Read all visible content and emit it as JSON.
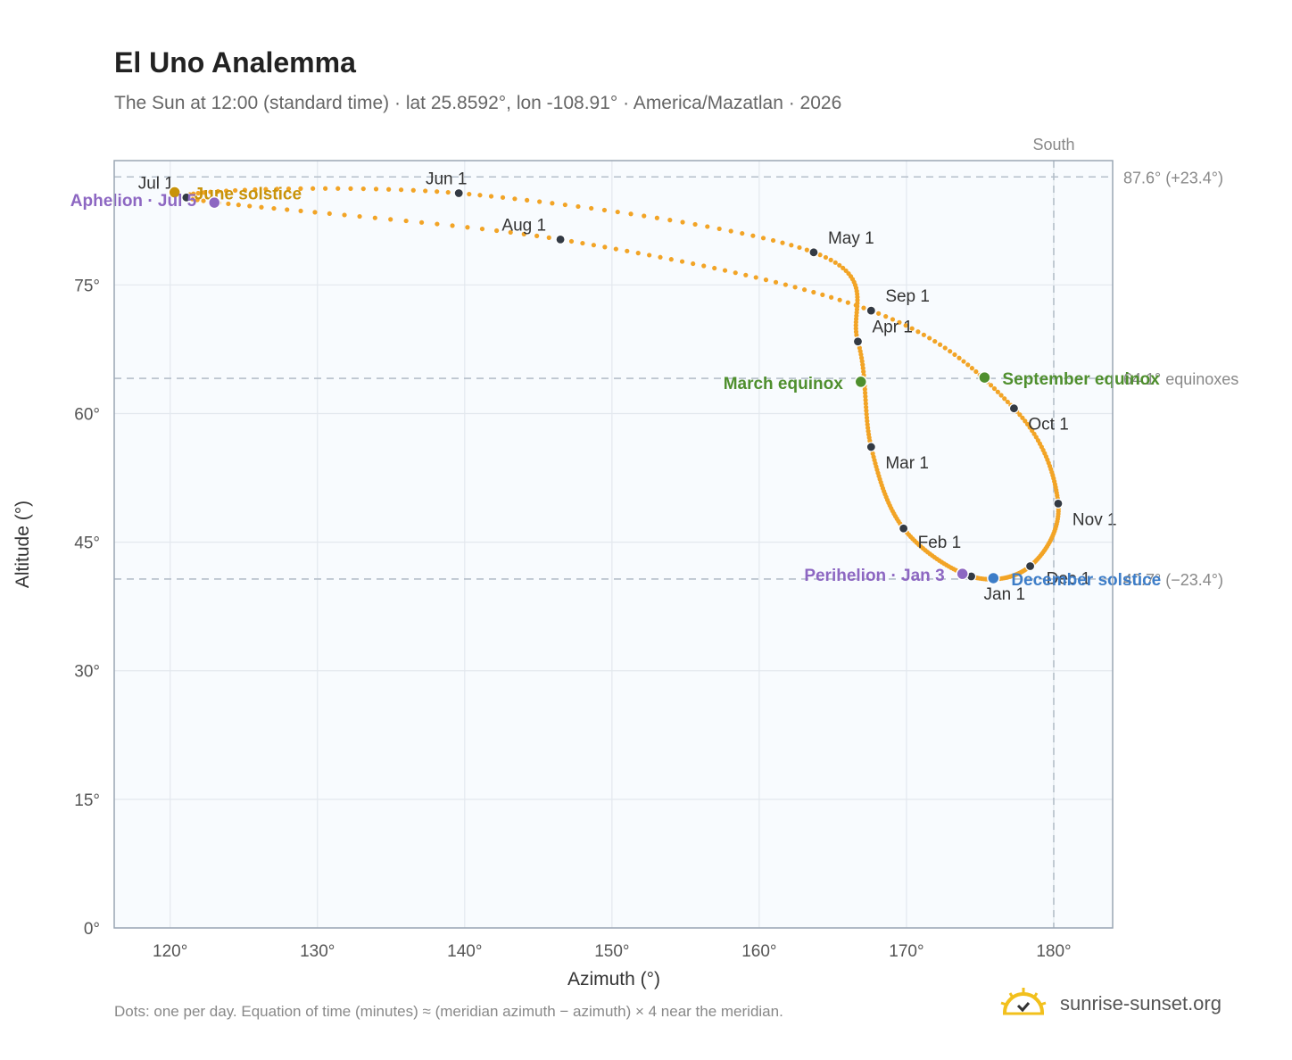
{
  "header": {
    "title": "El Uno Analemma",
    "subtitle": "The Sun at 12:00 (standard time) · lat 25.8592°, lon -108.91° · America/Mazatlan · 2026"
  },
  "footer": {
    "note": "Dots: one per day. Equation of time (minutes) ≈ (meridian azimuth − azimuth) × 4 near the meridian.",
    "brand": "sunrise-sunset.org"
  },
  "colors": {
    "curve": "#f2a426",
    "month_dot": "#333a44",
    "solstice_june": "#c8930a",
    "solstice_december": "#3d7dc8",
    "equinox": "#4f8f2e",
    "apsis": "#8d67c2",
    "guide": "#b5bfca",
    "plot_bg": "#f8fbfe",
    "grid": "#e3e8ee"
  },
  "chart_data": {
    "type": "scatter",
    "xlabel": "Azimuth (°)",
    "ylabel": "Altitude (°)",
    "xlim": [
      116.2,
      184
    ],
    "ylim": [
      0,
      89.5
    ],
    "x_ticks": [
      120,
      130,
      140,
      150,
      160,
      170,
      180
    ],
    "x_tick_labels": [
      "120°",
      "130°",
      "140°",
      "150°",
      "160°",
      "170°",
      "180°"
    ],
    "y_ticks": [
      0,
      15,
      30,
      45,
      60,
      75
    ],
    "y_tick_labels": [
      "0°",
      "15°",
      "30°",
      "45°",
      "60°",
      "75°"
    ],
    "grid": true,
    "reference_lines": [
      {
        "axis": "y",
        "value": 87.6,
        "label": "87.6° (+23.4°)"
      },
      {
        "axis": "y",
        "value": 64.1,
        "label": "64.1° equinoxes"
      },
      {
        "axis": "y",
        "value": 40.7,
        "label": "40.7° (−23.4°)"
      },
      {
        "axis": "x",
        "value": 180,
        "label": "South"
      }
    ],
    "month_markers": [
      {
        "label": "Jan 1",
        "x": 174.4,
        "y": 41.0
      },
      {
        "label": "Feb 1",
        "x": 169.8,
        "y": 46.6
      },
      {
        "label": "Mar 1",
        "x": 167.6,
        "y": 56.1
      },
      {
        "label": "Apr 1",
        "x": 166.7,
        "y": 68.4
      },
      {
        "label": "May 1",
        "x": 163.7,
        "y": 78.8
      },
      {
        "label": "Jun 1",
        "x": 139.6,
        "y": 85.7
      },
      {
        "label": "Jul 1",
        "x": 121.1,
        "y": 85.2
      },
      {
        "label": "Aug 1",
        "x": 146.5,
        "y": 80.3
      },
      {
        "label": "Sep 1",
        "x": 167.6,
        "y": 72.0
      },
      {
        "label": "Oct 1",
        "x": 177.3,
        "y": 60.6
      },
      {
        "label": "Nov 1",
        "x": 180.3,
        "y": 49.5
      },
      {
        "label": "Dec 1",
        "x": 178.4,
        "y": 42.2
      }
    ],
    "events": [
      {
        "label": "June solstice",
        "x": 120.3,
        "y": 85.8,
        "kind": "solstice_june"
      },
      {
        "label": "December solstice",
        "x": 175.9,
        "y": 40.8,
        "kind": "solstice_december"
      },
      {
        "label": "March equinox",
        "x": 166.9,
        "y": 63.7,
        "kind": "equinox"
      },
      {
        "label": "September equinox",
        "x": 175.3,
        "y": 64.2,
        "kind": "equinox"
      },
      {
        "label": "Perihelion · Jan 3",
        "x": 173.8,
        "y": 41.3,
        "kind": "apsis"
      },
      {
        "label": "Aphelion · Jul 5",
        "x": 123.0,
        "y": 84.6,
        "kind": "apsis"
      }
    ]
  }
}
